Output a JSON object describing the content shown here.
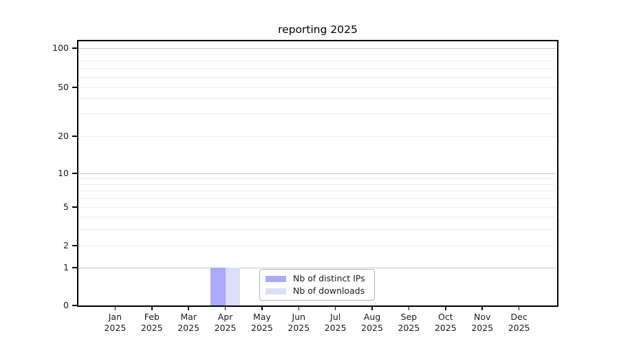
{
  "chart_data": {
    "type": "bar",
    "title": "reporting 2025",
    "categories": [
      "Jan 2025",
      "Feb 2025",
      "Mar 2025",
      "Apr 2025",
      "May 2025",
      "Jun 2025",
      "Jul 2025",
      "Aug 2025",
      "Sep 2025",
      "Oct 2025",
      "Nov 2025",
      "Dec 2025"
    ],
    "series": [
      {
        "name": "Nb of distinct IPs",
        "color": "#aaaaff",
        "values": [
          0,
          0,
          0,
          1,
          0,
          0,
          0,
          0,
          0,
          0,
          0,
          0
        ]
      },
      {
        "name": "Nb of downloads",
        "color": "#ddddff",
        "values": [
          0,
          0,
          0,
          1,
          0,
          0,
          0,
          0,
          0,
          0,
          0,
          0
        ]
      }
    ],
    "y_scale": "symlog",
    "ylim": [
      0,
      100
    ],
    "y_tick_labels": [
      "0",
      "1",
      "2",
      "5",
      "10",
      "20",
      "50",
      "100"
    ],
    "grid": "horizontal",
    "legend_position": "lower-center-inside",
    "xlabel": "",
    "ylabel": ""
  },
  "colors": {
    "bar_distinct_ips": "#aaaaff",
    "bar_downloads": "#ddddff",
    "major_gridline": "#c6c6c6",
    "minor_gridline": "#ececec",
    "spine": "#000000",
    "text": "#1a1a1a"
  }
}
